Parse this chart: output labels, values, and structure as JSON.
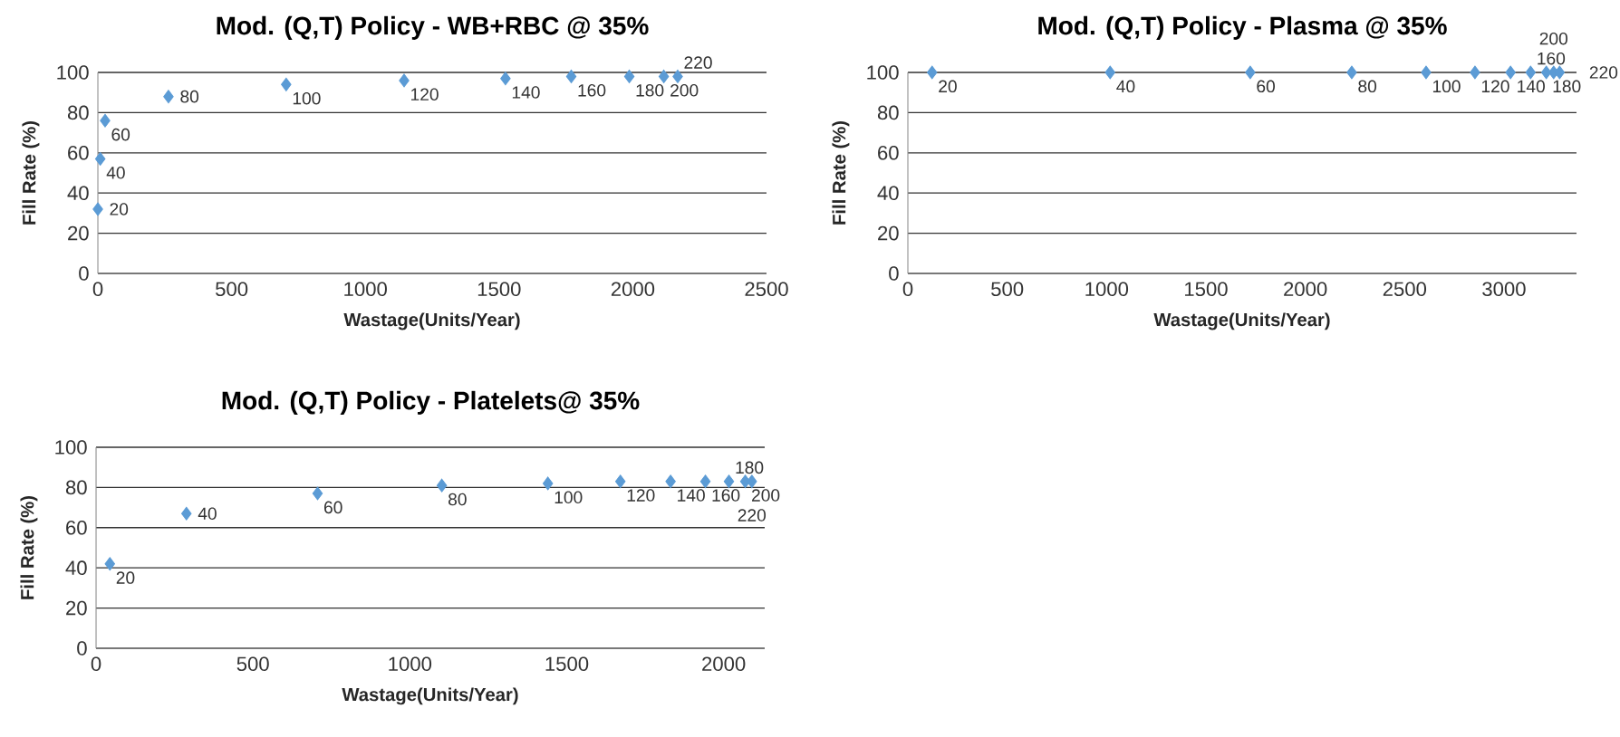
{
  "chart_data": [
    {
      "type": "scatter",
      "title": "Mod. (Q,T) Policy - WB+RBC @ 35%",
      "xlabel": "Wastage(Units/Year)",
      "ylabel": "Fill Rate (%)",
      "x": [
        0,
        9,
        27,
        264,
        704,
        1145,
        1524,
        1770,
        1987,
        2116,
        2168
      ],
      "values": [
        32,
        57,
        76,
        88,
        94,
        96,
        97,
        98,
        98,
        98,
        98
      ],
      "color": "#5b9bd5",
      "marker": "diamond",
      "xlim": [
        0,
        2500
      ],
      "xticks": [
        0,
        500,
        1000,
        1500,
        2000,
        2500
      ],
      "ylim": [
        0,
        100
      ],
      "yticks": [
        0,
        20,
        40,
        60,
        80,
        100
      ],
      "grid": "y",
      "annotations": [
        {
          "text": "20",
          "x": 0,
          "y": 32
        },
        {
          "text": "40",
          "x": 9,
          "y": 57
        },
        {
          "text": "60",
          "x": 27,
          "y": 76
        },
        {
          "text": "80",
          "x": 264,
          "y": 88
        },
        {
          "text": "100",
          "x": 704,
          "y": 94
        },
        {
          "text": "120",
          "x": 1145,
          "y": 96
        },
        {
          "text": "140",
          "x": 1524,
          "y": 97
        },
        {
          "text": "160",
          "x": 1770,
          "y": 98
        },
        {
          "text": "180",
          "x": 1987,
          "y": 98
        },
        {
          "text": "200",
          "x": 2116,
          "y": 98
        },
        {
          "text": "220",
          "x": 2168,
          "y": 98
        }
      ]
    },
    {
      "type": "scatter",
      "title": "Mod. (Q,T) Policy - Plasma @ 35%",
      "xlabel": "Wastage(Units/Year)",
      "ylabel": "Fill Rate (%)",
      "x": [
        122,
        1018,
        1723,
        2234,
        2608,
        2854,
        3033,
        3134,
        3213,
        3250,
        3280
      ],
      "values": [
        100,
        100,
        100,
        100,
        100,
        100,
        100,
        100,
        100,
        100,
        100
      ],
      "color": "#5b9bd5",
      "marker": "diamond",
      "xlim": [
        0,
        3365
      ],
      "xticks": [
        0,
        500,
        1000,
        1500,
        2000,
        2500,
        3000
      ],
      "ylim": [
        0,
        100
      ],
      "yticks": [
        0,
        20,
        40,
        60,
        80,
        100
      ],
      "grid": "y",
      "annotations": [
        {
          "text": "20",
          "x": 122,
          "y": 100
        },
        {
          "text": "40",
          "x": 1018,
          "y": 100
        },
        {
          "text": "60",
          "x": 1723,
          "y": 100
        },
        {
          "text": "80",
          "x": 2234,
          "y": 100
        },
        {
          "text": "100",
          "x": 2608,
          "y": 100
        },
        {
          "text": "120",
          "x": 2854,
          "y": 100
        },
        {
          "text": "140",
          "x": 3033,
          "y": 100
        },
        {
          "text": "160",
          "x": 3134,
          "y": 100
        },
        {
          "text": "180",
          "x": 3213,
          "y": 100
        },
        {
          "text": "200",
          "x": 3250,
          "y": 100
        },
        {
          "text": "220",
          "x": 3280,
          "y": 100
        }
      ]
    },
    {
      "type": "scatter",
      "title": "Mod. (Q,T) Policy - Platelets@ 35%",
      "xlabel": "Wastage(Units/Year)",
      "ylabel": "Fill Rate (%)",
      "x": [
        44,
        288,
        706,
        1102,
        1440,
        1671,
        1831,
        1942,
        2017,
        2069,
        2090
      ],
      "values": [
        42,
        67,
        77,
        81,
        82,
        83,
        83,
        83,
        83,
        83,
        83
      ],
      "color": "#5b9bd5",
      "marker": "diamond",
      "xlim": [
        0,
        2131
      ],
      "xticks": [
        0,
        500,
        1000,
        1500,
        2000
      ],
      "ylim": [
        0,
        100
      ],
      "yticks": [
        0,
        20,
        40,
        60,
        80,
        100
      ],
      "grid": "y",
      "annotations": [
        {
          "text": "20",
          "x": 44,
          "y": 42
        },
        {
          "text": "40",
          "x": 288,
          "y": 67
        },
        {
          "text": "60",
          "x": 706,
          "y": 77
        },
        {
          "text": "80",
          "x": 1102,
          "y": 81
        },
        {
          "text": "100",
          "x": 1440,
          "y": 82
        },
        {
          "text": "120",
          "x": 1671,
          "y": 83
        },
        {
          "text": "140",
          "x": 1831,
          "y": 83
        },
        {
          "text": "160",
          "x": 1942,
          "y": 83
        },
        {
          "text": "180",
          "x": 2017,
          "y": 83
        },
        {
          "text": "200",
          "x": 2069,
          "y": 83
        },
        {
          "text": "220",
          "x": 2090,
          "y": 83
        }
      ]
    }
  ]
}
